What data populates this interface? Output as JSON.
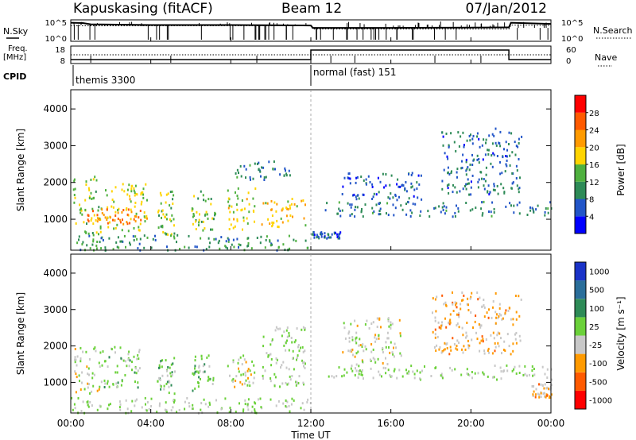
{
  "header": {
    "station": "Kapuskasing (fitACF)",
    "beam": "Beam 12",
    "date": "07/Jan/2012"
  },
  "sky_panel": {
    "left_label": "N.Sky",
    "right_label": "N.Search",
    "left_ticks": [
      "10^5",
      "10^0"
    ],
    "right_ticks": [
      "10^5",
      "10^0"
    ]
  },
  "freq_panel": {
    "left_label_1": "Freq.",
    "left_label_2": "[MHz]",
    "left_ticks": [
      "18",
      "8"
    ],
    "right_label": "Nave",
    "right_ticks": [
      "60",
      "0"
    ]
  },
  "cpid": {
    "label": "CPID",
    "segments": [
      {
        "label": "themis 3300",
        "start_hour": 0
      },
      {
        "label": "normal (fast) 151",
        "start_hour": 12
      }
    ]
  },
  "x_axis": {
    "label": "Time UT",
    "ticks": [
      "00:00",
      "04:00",
      "08:00",
      "12:00",
      "16:00",
      "20:00",
      "00:00"
    ]
  },
  "power_panel": {
    "ylabel": "Slant Range [km]",
    "yticks": [
      "1000",
      "2000",
      "3000",
      "4000"
    ],
    "colorbar_label": "Power [dB]",
    "colorbar_ticks": [
      "4",
      "8",
      "12",
      "16",
      "20",
      "24",
      "28"
    ],
    "colors": [
      "#0000ff",
      "#2255c8",
      "#2e8b57",
      "#4fb13f",
      "#ffd400",
      "#ff9a00",
      "#ff5a00",
      "#ff0000"
    ]
  },
  "velocity_panel": {
    "ylabel": "Slant Range [km]",
    "yticks": [
      "1000",
      "2000",
      "3000",
      "4000"
    ],
    "colorbar_label": "Velocity [m s⁻¹]",
    "colorbar_ticks": [
      "1000",
      "500",
      "100",
      "25",
      "-25",
      "-100",
      "-500",
      "-1000"
    ],
    "colors": [
      "#1a33c8",
      "#2a6e9a",
      "#2e8b57",
      "#6bd13a",
      "#c8c8c8",
      "#ff9a00",
      "#ff5a00",
      "#ff0000"
    ]
  },
  "chart_data": [
    {
      "type": "line",
      "title": "N.Sky / N.Search",
      "x_label": "Time UT",
      "x_range_hours": [
        0,
        24
      ],
      "y_scale": "log",
      "y_range": [
        1,
        100000
      ],
      "series": [
        {
          "name": "N.Sky",
          "x": [
            0,
            0.6,
            1,
            4,
            8,
            12,
            12.1,
            16,
            20,
            21.9,
            22,
            24
          ],
          "y": [
            30000,
            25000,
            12000,
            8000,
            8000,
            6000,
            1500,
            1500,
            1800,
            2000,
            30000,
            15000
          ]
        },
        {
          "name": "N.Search",
          "x": [
            0,
            12,
            12.1,
            21.9,
            22,
            24
          ],
          "y": [
            5000,
            5000,
            800,
            800,
            8000,
            6000
          ]
        }
      ]
    },
    {
      "type": "line",
      "title": "Freq. / Nave",
      "x_label": "Time UT",
      "x_range_hours": [
        0,
        24
      ],
      "series": [
        {
          "name": "Freq. [MHz]",
          "x": [
            0,
            12,
            12,
            21.9,
            21.9,
            24
          ],
          "y": [
            10,
            10,
            16,
            16,
            10,
            10
          ]
        },
        {
          "name": "Nave",
          "x": [
            0,
            24
          ],
          "y": [
            30,
            30
          ]
        }
      ]
    },
    {
      "type": "heatmap",
      "title": "Power [dB]",
      "ylabel": "Slant Range [km]",
      "x_range_hours": [
        0,
        24
      ],
      "y_range_km": [
        180,
        4500
      ],
      "color_range": [
        0,
        30
      ],
      "regions": [
        {
          "t": [
            0.1,
            1.5
          ],
          "r": [
            600,
            2200
          ],
          "v": 14
        },
        {
          "t": [
            1.5,
            3.8
          ],
          "r": [
            700,
            2000
          ],
          "v": 16
        },
        {
          "t": [
            0.8,
            3.5
          ],
          "r": [
            900,
            1300
          ],
          "v": 22
        },
        {
          "t": [
            4.3,
            5.2
          ],
          "r": [
            600,
            1800
          ],
          "v": 14
        },
        {
          "t": [
            6.0,
            7.2
          ],
          "r": [
            700,
            1800
          ],
          "v": 14
        },
        {
          "t": [
            7.8,
            9.2
          ],
          "r": [
            700,
            1900
          ],
          "v": 16
        },
        {
          "t": [
            9.5,
            11.7
          ],
          "r": [
            800,
            1600
          ],
          "v": 18
        },
        {
          "t": [
            8.0,
            11.0
          ],
          "r": [
            2100,
            2600
          ],
          "v": 8
        },
        {
          "t": [
            12.6,
            24.0
          ],
          "r": [
            1100,
            1500
          ],
          "v": 8
        },
        {
          "t": [
            13.5,
            17.5
          ],
          "r": [
            1500,
            2300
          ],
          "v": 6
        },
        {
          "t": [
            18.5,
            22.5
          ],
          "r": [
            1700,
            3500
          ],
          "v": 7
        },
        {
          "t": [
            0.0,
            12.0
          ],
          "r": [
            180,
            600
          ],
          "v": 10
        },
        {
          "t": [
            12.0,
            13.5
          ],
          "r": [
            500,
            700
          ],
          "v": 6
        }
      ]
    },
    {
      "type": "heatmap",
      "title": "Velocity [m s⁻¹]",
      "ylabel": "Slant Range [km]",
      "x_range_hours": [
        0,
        24
      ],
      "y_range_km": [
        180,
        4500
      ],
      "color_range": [
        -1000,
        1000
      ],
      "regions": [
        {
          "t": [
            0.1,
            1.5
          ],
          "r": [
            700,
            2000
          ],
          "v": -100
        },
        {
          "t": [
            1.5,
            3.5
          ],
          "r": [
            800,
            2000
          ],
          "v": 100
        },
        {
          "t": [
            4.3,
            5.2
          ],
          "r": [
            700,
            1700
          ],
          "v": 100
        },
        {
          "t": [
            6.0,
            7.2
          ],
          "r": [
            800,
            1800
          ],
          "v": 100
        },
        {
          "t": [
            7.8,
            9.2
          ],
          "r": [
            900,
            1800
          ],
          "v": -100
        },
        {
          "t": [
            9.5,
            11.7
          ],
          "r": [
            900,
            2600
          ],
          "v": 0
        },
        {
          "t": [
            12.8,
            24.0
          ],
          "r": [
            1100,
            1500
          ],
          "v": 0
        },
        {
          "t": [
            13.5,
            16.5
          ],
          "r": [
            1500,
            2800
          ],
          "v": -100
        },
        {
          "t": [
            18.0,
            22.5
          ],
          "r": [
            1800,
            3500
          ],
          "v": -300
        },
        {
          "t": [
            0.0,
            12.0
          ],
          "r": [
            180,
            600
          ],
          "v": 0
        },
        {
          "t": [
            23.0,
            24.0
          ],
          "r": [
            600,
            1000
          ],
          "v": -300
        }
      ]
    }
  ]
}
